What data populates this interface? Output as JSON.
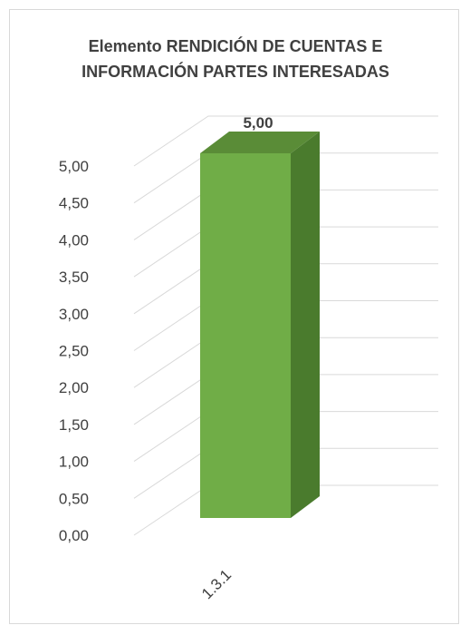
{
  "chart_data": {
    "type": "bar",
    "title_line1": "Elemento RENDICIÓN DE CUENTAS E",
    "title_line2": "INFORMACIÓN PARTES INTERESADAS",
    "categories": [
      "1.3.1"
    ],
    "values": [
      5.0
    ],
    "value_labels": [
      "5,00"
    ],
    "ylim": [
      0,
      5
    ],
    "yticks": [
      "0,00",
      "0,50",
      "1,00",
      "1,50",
      "2,00",
      "2,50",
      "3,00",
      "3,50",
      "4,00",
      "4,50",
      "5,00"
    ],
    "grid": true,
    "legend": "none",
    "colors": {
      "bar_front": "#70ad47",
      "bar_side": "#4a7b2d",
      "bar_top": "#5a8c37",
      "grid": "#d9d9d9"
    }
  }
}
